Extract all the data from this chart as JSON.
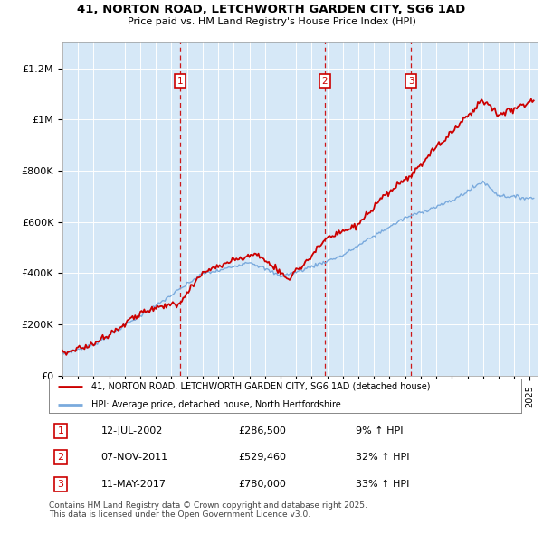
{
  "title_line1": "41, NORTON ROAD, LETCHWORTH GARDEN CITY, SG6 1AD",
  "title_line2": "Price paid vs. HM Land Registry's House Price Index (HPI)",
  "bg_color": "#d6e8f7",
  "red_line_color": "#cc0000",
  "blue_line_color": "#7aaadd",
  "grid_color": "#ffffff",
  "sale_years_decimal": [
    2002.538,
    2011.836,
    2017.368
  ],
  "sale_labels": [
    "1",
    "2",
    "3"
  ],
  "sale_date_strs": [
    "12-JUL-2002",
    "07-NOV-2011",
    "11-MAY-2017"
  ],
  "sale_price_strs": [
    "£286,500",
    "£529,460",
    "£780,000"
  ],
  "sale_hpi_strs": [
    "9% ↑ HPI",
    "32% ↑ HPI",
    "33% ↑ HPI"
  ],
  "legend_red": "41, NORTON ROAD, LETCHWORTH GARDEN CITY, SG6 1AD (detached house)",
  "legend_blue": "HPI: Average price, detached house, North Hertfordshire",
  "footer": "Contains HM Land Registry data © Crown copyright and database right 2025.\nThis data is licensed under the Open Government Licence v3.0.",
  "ylim": [
    0,
    1300000
  ],
  "yticks": [
    0,
    200000,
    400000,
    600000,
    800000,
    1000000,
    1200000
  ],
  "ytick_labels": [
    "£0",
    "£200K",
    "£400K",
    "£600K",
    "£800K",
    "£1M",
    "£1.2M"
  ],
  "xmin": 1995,
  "xmax": 2025.5
}
